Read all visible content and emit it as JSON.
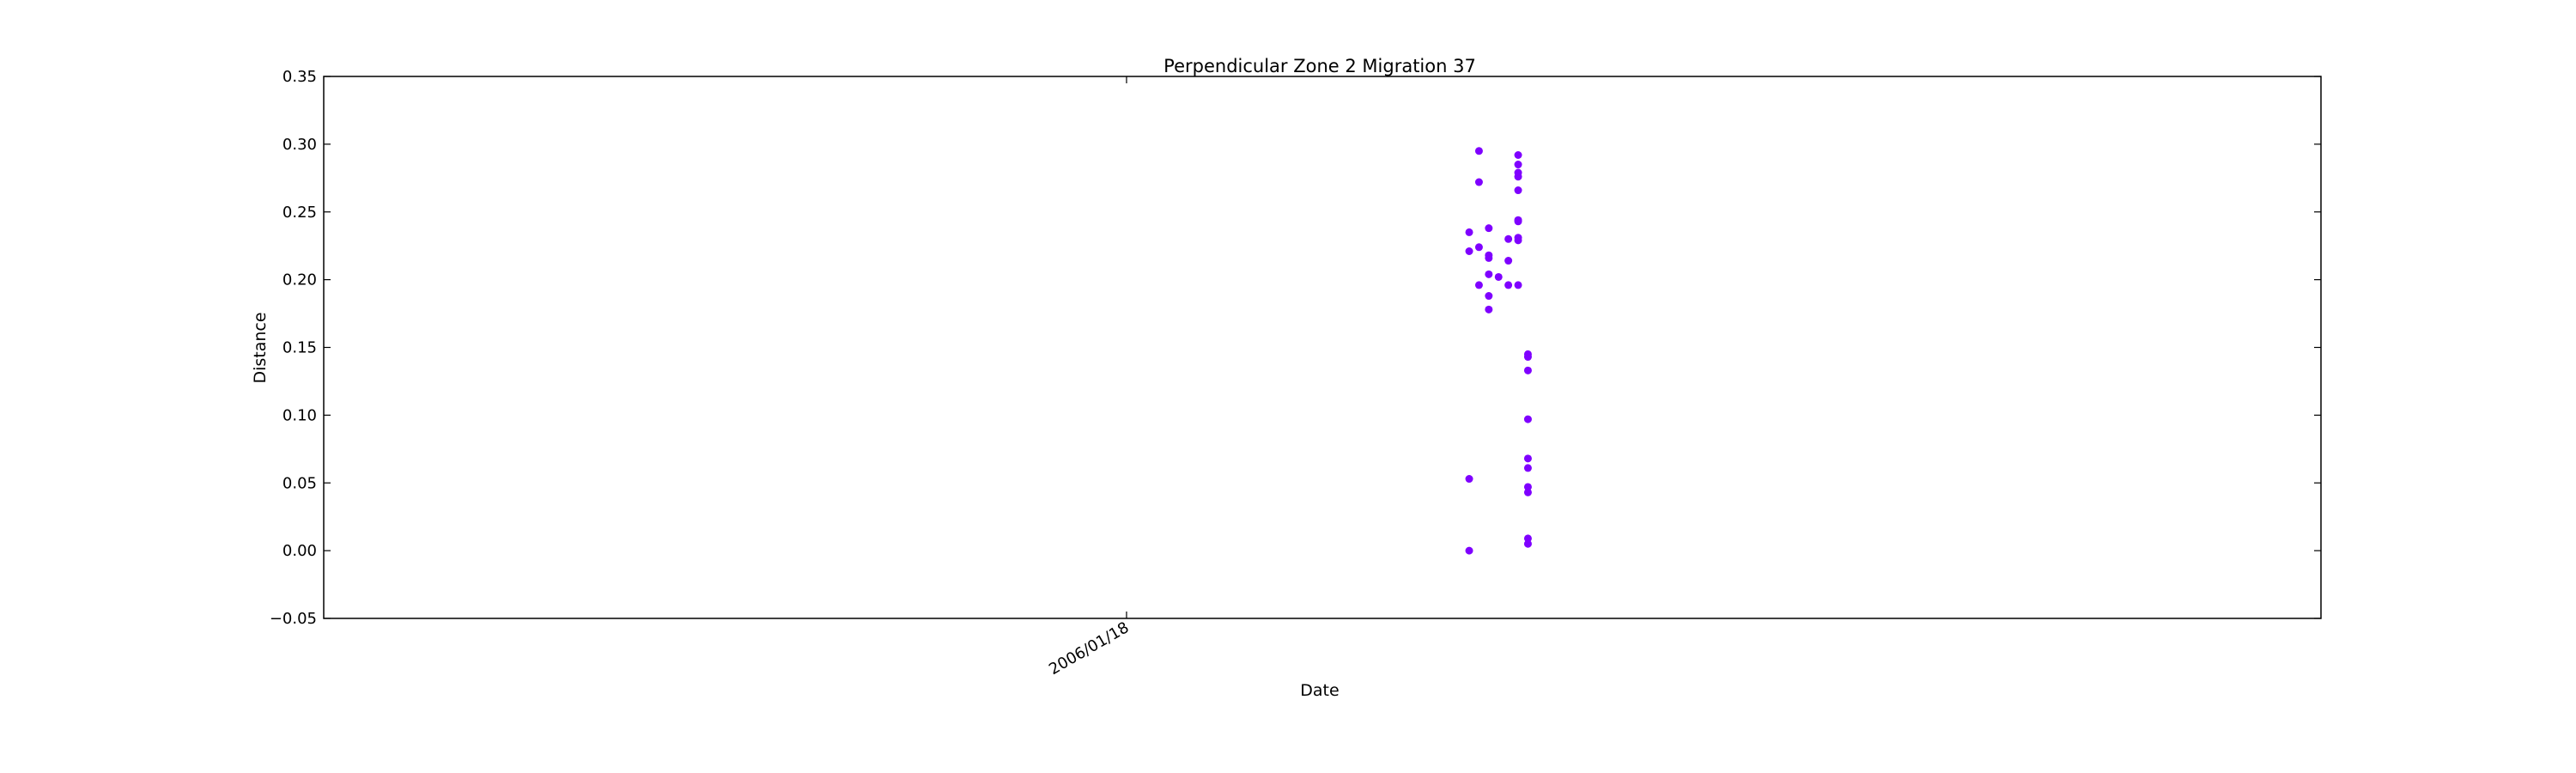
{
  "chart_data": {
    "type": "scatter",
    "title": "Perpendicular Zone 2 Migration 37",
    "xlabel": "Date",
    "ylabel": "Distance",
    "ylim": [
      -0.05,
      0.35
    ],
    "yticks": [
      -0.05,
      0.0,
      0.05,
      0.1,
      0.15,
      0.2,
      0.25,
      0.3,
      0.35
    ],
    "ytick_labels": [
      "−0.05",
      "0.00",
      "0.05",
      "0.10",
      "0.15",
      "0.20",
      "0.25",
      "0.30",
      "0.35"
    ],
    "xlim": [
      "2005/10/28",
      "2006/05/20"
    ],
    "xticks": [
      "2006/01/18"
    ],
    "xtick_labels": [
      "2006/01/18"
    ],
    "grid": false,
    "marker_color": "#7f00ff",
    "points": [
      {
        "x": "2006/02/22",
        "y": 0.053
      },
      {
        "x": "2006/02/22",
        "y": 0.0
      },
      {
        "x": "2006/02/22",
        "y": 0.221
      },
      {
        "x": "2006/02/22",
        "y": 0.235
      },
      {
        "x": "2006/02/23",
        "y": 0.224
      },
      {
        "x": "2006/02/23",
        "y": 0.272
      },
      {
        "x": "2006/02/23",
        "y": 0.295
      },
      {
        "x": "2006/02/23",
        "y": 0.196
      },
      {
        "x": "2006/02/24",
        "y": 0.204
      },
      {
        "x": "2006/02/24",
        "y": 0.178
      },
      {
        "x": "2006/02/24",
        "y": 0.238
      },
      {
        "x": "2006/02/24",
        "y": 0.216
      },
      {
        "x": "2006/02/24",
        "y": 0.188
      },
      {
        "x": "2006/02/24",
        "y": 0.218
      },
      {
        "x": "2006/02/25",
        "y": 0.202
      },
      {
        "x": "2006/02/26",
        "y": 0.214
      },
      {
        "x": "2006/02/26",
        "y": 0.23
      },
      {
        "x": "2006/02/26",
        "y": 0.196
      },
      {
        "x": "2006/02/27",
        "y": 0.229
      },
      {
        "x": "2006/02/27",
        "y": 0.196
      },
      {
        "x": "2006/02/27",
        "y": 0.266
      },
      {
        "x": "2006/02/27",
        "y": 0.285
      },
      {
        "x": "2006/02/27",
        "y": 0.292
      },
      {
        "x": "2006/02/27",
        "y": 0.279
      },
      {
        "x": "2006/02/27",
        "y": 0.276
      },
      {
        "x": "2006/02/27",
        "y": 0.244
      },
      {
        "x": "2006/02/27",
        "y": 0.231
      },
      {
        "x": "2006/02/27",
        "y": 0.243
      },
      {
        "x": "2006/02/28",
        "y": 0.068
      },
      {
        "x": "2006/02/28",
        "y": 0.061
      },
      {
        "x": "2006/02/28",
        "y": 0.043
      },
      {
        "x": "2006/02/28",
        "y": 0.097
      },
      {
        "x": "2006/02/28",
        "y": 0.047
      },
      {
        "x": "2006/02/28",
        "y": 0.009
      },
      {
        "x": "2006/02/28",
        "y": 0.005
      },
      {
        "x": "2006/02/28",
        "y": 0.145
      },
      {
        "x": "2006/02/28",
        "y": 0.143
      },
      {
        "x": "2006/02/28",
        "y": 0.133
      }
    ]
  }
}
